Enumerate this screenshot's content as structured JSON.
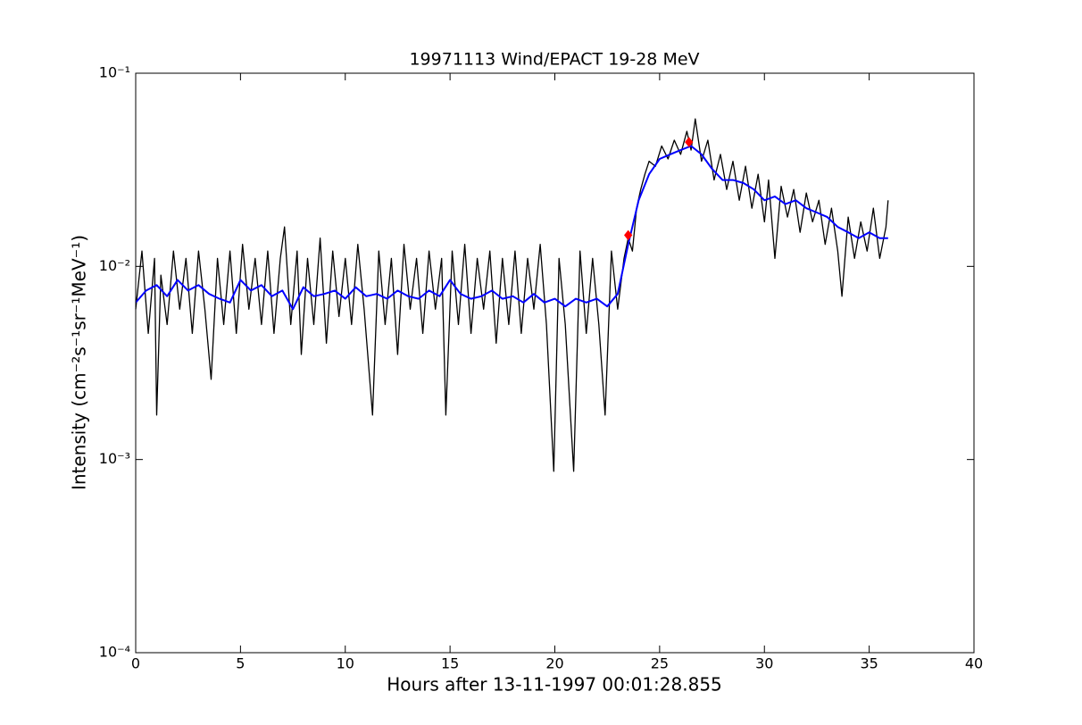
{
  "chart_data": {
    "type": "line",
    "title": "19971113 Wind/EPACT 19-28 MeV",
    "x_label": "Hours after 13-11-1997 00:01:28.855",
    "y_label": "Intensity (cm⁻²s⁻¹sr⁻¹MeV⁻¹)",
    "ylog": true,
    "xlim": [
      0,
      40
    ],
    "xticks": [
      0,
      5,
      10,
      15,
      20,
      25,
      30,
      35,
      40
    ],
    "ylim": [
      0.0001,
      0.1
    ],
    "yticks": [
      {
        "value": 0.0001,
        "label": "10⁻⁴"
      },
      {
        "value": 0.001,
        "label": "10⁻³"
      },
      {
        "value": 0.01,
        "label": "10⁻²"
      },
      {
        "value": 0.1,
        "label": "10⁻¹"
      }
    ],
    "series": [
      {
        "color": "#000000",
        "marker": "none",
        "x": [
          0,
          0.3,
          0.6,
          0.9,
          1.0,
          1.2,
          1.5,
          1.8,
          2.1,
          2.4,
          2.7,
          3.0,
          3.3,
          3.6,
          3.9,
          4.2,
          4.5,
          4.8,
          5.1,
          5.4,
          5.7,
          6.0,
          6.3,
          6.6,
          6.9,
          7.1,
          7.4,
          7.7,
          7.9,
          8.2,
          8.5,
          8.8,
          9.1,
          9.4,
          9.7,
          10.0,
          10.3,
          10.6,
          10.9,
          11.3,
          11.6,
          11.9,
          12.2,
          12.5,
          12.8,
          13.1,
          13.4,
          13.7,
          14.0,
          14.3,
          14.6,
          14.8,
          15.1,
          15.4,
          15.7,
          16.0,
          16.3,
          16.6,
          16.9,
          17.2,
          17.5,
          17.8,
          18.1,
          18.4,
          18.7,
          19.0,
          19.3,
          19.6,
          19.95,
          20.2,
          20.5,
          20.9,
          21.2,
          21.5,
          21.8,
          22.1,
          22.4,
          22.7,
          23.0,
          23.3,
          23.5,
          23.7,
          23.9,
          24.1,
          24.3,
          24.5,
          24.8,
          25.1,
          25.4,
          25.7,
          26.0,
          26.3,
          26.5,
          26.7,
          27.0,
          27.3,
          27.6,
          27.9,
          28.2,
          28.5,
          28.8,
          29.1,
          29.4,
          29.7,
          30.0,
          30.2,
          30.5,
          30.8,
          31.1,
          31.4,
          31.7,
          32.0,
          32.3,
          32.6,
          32.9,
          33.2,
          33.5,
          33.7,
          34.0,
          34.3,
          34.6,
          34.9,
          35.2,
          35.5,
          35.8,
          35.9
        ],
        "values": [
          0.006,
          0.012,
          0.0045,
          0.011,
          0.0017,
          0.009,
          0.005,
          0.012,
          0.006,
          0.011,
          0.0045,
          0.012,
          0.006,
          0.0026,
          0.011,
          0.005,
          0.012,
          0.0045,
          0.013,
          0.006,
          0.011,
          0.005,
          0.012,
          0.0045,
          0.011,
          0.016,
          0.005,
          0.012,
          0.0035,
          0.011,
          0.005,
          0.014,
          0.004,
          0.012,
          0.0055,
          0.011,
          0.005,
          0.013,
          0.006,
          0.0017,
          0.012,
          0.005,
          0.011,
          0.0035,
          0.013,
          0.006,
          0.011,
          0.0045,
          0.012,
          0.006,
          0.011,
          0.0017,
          0.012,
          0.005,
          0.013,
          0.0045,
          0.011,
          0.006,
          0.012,
          0.004,
          0.011,
          0.005,
          0.012,
          0.0045,
          0.011,
          0.006,
          0.013,
          0.005,
          0.00087,
          0.011,
          0.005,
          0.00087,
          0.012,
          0.0045,
          0.011,
          0.005,
          0.0017,
          0.012,
          0.006,
          0.011,
          0.014,
          0.012,
          0.02,
          0.025,
          0.03,
          0.035,
          0.033,
          0.042,
          0.036,
          0.045,
          0.038,
          0.05,
          0.04,
          0.058,
          0.035,
          0.045,
          0.028,
          0.038,
          0.025,
          0.035,
          0.022,
          0.033,
          0.02,
          0.03,
          0.017,
          0.028,
          0.011,
          0.026,
          0.018,
          0.025,
          0.015,
          0.024,
          0.017,
          0.022,
          0.013,
          0.02,
          0.012,
          0.007,
          0.018,
          0.011,
          0.017,
          0.012,
          0.02,
          0.011,
          0.016,
          0.022
        ]
      },
      {
        "color": "#0000ff",
        "marker": "none",
        "x": [
          0,
          0.5,
          1,
          1.5,
          2,
          2.5,
          3,
          3.5,
          4,
          4.5,
          5,
          5.5,
          6,
          6.5,
          7,
          7.5,
          8,
          8.5,
          9,
          9.5,
          10,
          10.5,
          11,
          11.5,
          12,
          12.5,
          13,
          13.5,
          14,
          14.5,
          15,
          15.5,
          16,
          16.5,
          17,
          17.5,
          18,
          18.5,
          19,
          19.5,
          20,
          20.5,
          21,
          21.5,
          22,
          22.5,
          23,
          23.5,
          24,
          24.5,
          25,
          25.5,
          26,
          26.5,
          27,
          27.5,
          28,
          28.5,
          29,
          29.5,
          30,
          30.5,
          31,
          31.5,
          32,
          32.5,
          33,
          33.5,
          34,
          34.5,
          35,
          35.5,
          35.9
        ],
        "values": [
          0.0065,
          0.0075,
          0.008,
          0.007,
          0.0085,
          0.0075,
          0.008,
          0.0072,
          0.0068,
          0.0065,
          0.0085,
          0.0075,
          0.008,
          0.007,
          0.0075,
          0.006,
          0.0078,
          0.007,
          0.0072,
          0.0075,
          0.0068,
          0.0078,
          0.007,
          0.0072,
          0.0068,
          0.0075,
          0.007,
          0.0068,
          0.0075,
          0.007,
          0.0085,
          0.0072,
          0.0068,
          0.007,
          0.0075,
          0.0068,
          0.007,
          0.0065,
          0.0072,
          0.0065,
          0.0068,
          0.0062,
          0.0068,
          0.0065,
          0.0068,
          0.0062,
          0.0072,
          0.013,
          0.022,
          0.03,
          0.036,
          0.038,
          0.04,
          0.042,
          0.038,
          0.032,
          0.028,
          0.028,
          0.027,
          0.025,
          0.022,
          0.023,
          0.021,
          0.022,
          0.02,
          0.019,
          0.018,
          0.016,
          0.015,
          0.014,
          0.015,
          0.014,
          0.014
        ]
      },
      {
        "color": "#ff0000",
        "marker": "diamond",
        "x": [
          23.5,
          26.4
        ],
        "values": [
          0.0145,
          0.044
        ]
      }
    ]
  }
}
